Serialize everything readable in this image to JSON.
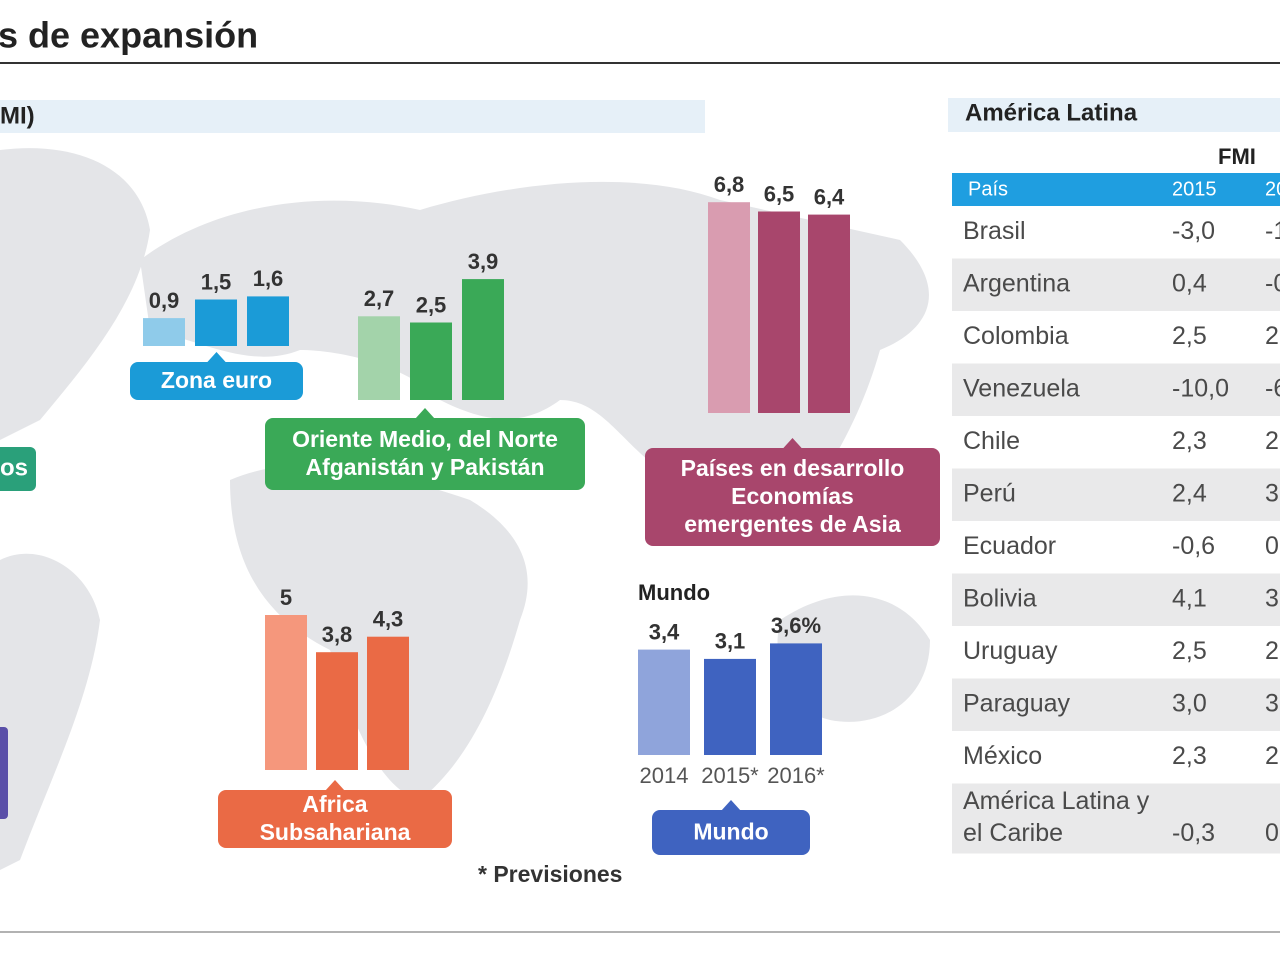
{
  "header": {
    "title": "s de expansión",
    "subtitle": "MI)"
  },
  "chart_data": [
    {
      "type": "bar",
      "label": [
        "Zona euro"
      ],
      "values": [
        0.9,
        1.5,
        1.6
      ],
      "value_labels": [
        "0,9",
        "1,5",
        "1,6"
      ],
      "colors": [
        "#8fcbea",
        "#1b9bd7",
        "#1b9bd7"
      ],
      "color": "#1b9bd7"
    },
    {
      "type": "bar",
      "label": [
        "Oriente Medio, del Norte",
        "Afganistán y Pakistán"
      ],
      "values": [
        2.7,
        2.5,
        3.9
      ],
      "value_labels": [
        "2,7",
        "2,5",
        "3,9"
      ],
      "colors": [
        "#a3d3aa",
        "#3aa957",
        "#3aa957"
      ],
      "color": "#3aa957"
    },
    {
      "type": "bar",
      "label": [
        "Países en desarrollo",
        "Economías",
        "emergentes de Asia"
      ],
      "values": [
        6.8,
        6.5,
        6.4
      ],
      "value_labels": [
        "6,8",
        "6,5",
        "6,4"
      ],
      "colors": [
        "#d99cb0",
        "#a8466c",
        "#a8466c"
      ],
      "color": "#a8466c"
    },
    {
      "type": "bar",
      "label": [
        "Africa",
        "Subsahariana"
      ],
      "values": [
        5,
        3.8,
        4.3
      ],
      "value_labels": [
        "5",
        "3,8",
        "4,3"
      ],
      "colors": [
        "#f5977c",
        "#ea6a45",
        "#ea6a45"
      ],
      "color": "#ea6a45"
    },
    {
      "type": "bar",
      "title": "Mundo",
      "label": [
        "Mundo"
      ],
      "categories": [
        "2014",
        "2015*",
        "2016*"
      ],
      "values": [
        3.4,
        3.1,
        3.6
      ],
      "value_labels": [
        "3,4",
        "3,1",
        "3,6%"
      ],
      "colors": [
        "#8fa4db",
        "#3f63c0",
        "#3f63c0"
      ],
      "color": "#3f63c0"
    }
  ],
  "left_label": "os",
  "note": "* Previsiones",
  "table": {
    "title": "América Latina",
    "group": "FMI",
    "header": [
      "País",
      "2015",
      "20"
    ],
    "rows": [
      [
        [
          "Brasil"
        ],
        "-3,0",
        "-1"
      ],
      [
        [
          "Argentina"
        ],
        "0,4",
        "-0"
      ],
      [
        [
          "Colombia"
        ],
        "2,5",
        "2"
      ],
      [
        [
          "Venezuela"
        ],
        "-10,0",
        "-6"
      ],
      [
        [
          "Chile"
        ],
        "2,3",
        "2"
      ],
      [
        [
          "Perú"
        ],
        "2,4",
        "3"
      ],
      [
        [
          "Ecuador"
        ],
        "-0,6",
        "0"
      ],
      [
        [
          "Bolivia"
        ],
        "4,1",
        "3"
      ],
      [
        [
          "Uruguay"
        ],
        "2,5",
        "2"
      ],
      [
        [
          "Paraguay"
        ],
        "3,0",
        "3"
      ],
      [
        [
          "México"
        ],
        "2,3",
        "2"
      ],
      [
        [
          "América Latina y",
          "el Caribe"
        ],
        "-0,3",
        "0"
      ]
    ]
  }
}
